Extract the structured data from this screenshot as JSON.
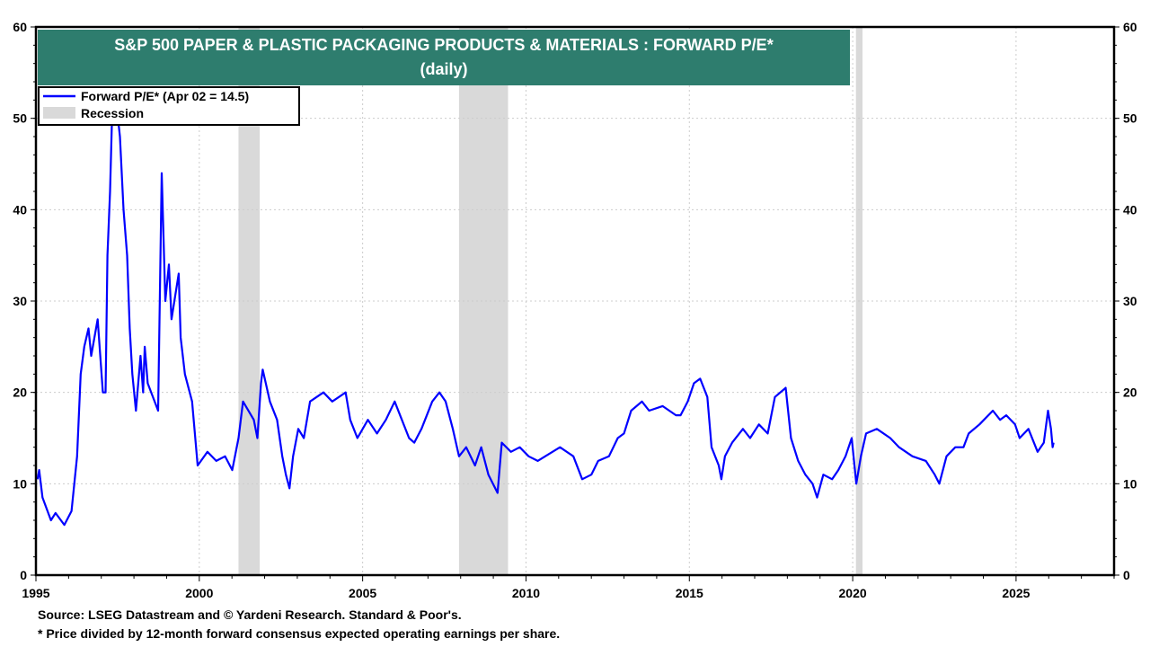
{
  "chart_data": {
    "type": "line",
    "title": "S&P 500 PAPER & PLASTIC PACKAGING PRODUCTS & MATERIALS : FORWARD P/E*",
    "subtitle": "(daily)",
    "xlim": [
      1995,
      2028
    ],
    "ylim": [
      0,
      60
    ],
    "x_ticks": [
      "1995",
      "2000",
      "2005",
      "2010",
      "2015",
      "2020",
      "2025"
    ],
    "y_ticks": [
      "0",
      "10",
      "20",
      "30",
      "40",
      "50",
      "60"
    ],
    "grid": true,
    "legend_position": "top-left",
    "title_bg": "#2E7D6E",
    "series": [
      {
        "name": "Forward P/E* (Apr 02 = 14.5)",
        "color": "#0000FF",
        "x": [
          1995.05,
          1995.1,
          1995.2,
          1995.46,
          1995.6,
          1995.87,
          1996.09,
          1996.26,
          1996.37,
          1996.48,
          1996.61,
          1996.69,
          1996.89,
          1997.05,
          1997.13,
          1997.19,
          1997.27,
          1997.32,
          1997.38,
          1997.51,
          1997.57,
          1997.68,
          1997.79,
          1997.87,
          1997.95,
          1998.06,
          1998.2,
          1998.28,
          1998.33,
          1998.42,
          1998.74,
          1998.85,
          1998.96,
          1999.07,
          1999.15,
          1999.37,
          1999.43,
          1999.56,
          1999.78,
          1999.95,
          2000.25,
          2000.52,
          2000.79,
          2001.01,
          2001.2,
          2001.34,
          2001.67,
          2001.78,
          2001.89,
          2001.94,
          2002.16,
          2002.38,
          2002.54,
          2002.65,
          2002.76,
          2002.87,
          2003.03,
          2003.2,
          2003.39,
          2003.8,
          2004.07,
          2004.48,
          2004.62,
          2004.84,
          2005.16,
          2005.44,
          2005.71,
          2005.98,
          2006.2,
          2006.42,
          2006.58,
          2006.8,
          2007.13,
          2007.35,
          2007.54,
          2007.76,
          2007.95,
          2008.17,
          2008.44,
          2008.63,
          2008.85,
          2009.13,
          2009.26,
          2009.54,
          2009.81,
          2010.08,
          2010.36,
          2011.04,
          2011.45,
          2011.72,
          2012.0,
          2012.21,
          2012.54,
          2012.81,
          2013.0,
          2013.22,
          2013.55,
          2013.77,
          2014.18,
          2014.59,
          2014.73,
          2014.95,
          2015.14,
          2015.33,
          2015.55,
          2015.68,
          2015.9,
          2015.98,
          2016.09,
          2016.31,
          2016.64,
          2016.86,
          2017.13,
          2017.4,
          2017.62,
          2017.95,
          2018.11,
          2018.33,
          2018.55,
          2018.77,
          2018.91,
          2019.1,
          2019.37,
          2019.56,
          2019.78,
          2019.97,
          2020.11,
          2020.25,
          2020.41,
          2020.74,
          2021.15,
          2021.42,
          2021.83,
          2022.24,
          2022.51,
          2022.65,
          2022.87,
          2023.14,
          2023.39,
          2023.55,
          2023.88,
          2024.29,
          2024.51,
          2024.7,
          2024.97,
          2025.11,
          2025.38,
          2025.66,
          2025.85,
          2025.98,
          2026.07,
          2026.12,
          2026.15
        ],
        "y": [
          10.5,
          11.5,
          8.5,
          6,
          6.8,
          5.5,
          7,
          13,
          22,
          25,
          27,
          24,
          28,
          20,
          20,
          35,
          42,
          49,
          53,
          50,
          48,
          40,
          35,
          27,
          22,
          18,
          24,
          20,
          25,
          21,
          18,
          44,
          30,
          34,
          28,
          33,
          26,
          22,
          19,
          12,
          13.5,
          12.5,
          13,
          11.5,
          15,
          19,
          17,
          15,
          21,
          22.5,
          19,
          17,
          13,
          11,
          9.5,
          13,
          16,
          15,
          19,
          20,
          19,
          20,
          17,
          15,
          17,
          15.5,
          17,
          19,
          17,
          15,
          14.5,
          16,
          19,
          20,
          19,
          16,
          13,
          14,
          12,
          14,
          11,
          9,
          14.5,
          13.5,
          14,
          13,
          12.5,
          14,
          13,
          10.5,
          11,
          12.5,
          13,
          15,
          15.5,
          18,
          19,
          18,
          18.5,
          17.5,
          17.5,
          19,
          21,
          21.5,
          19.5,
          14,
          12,
          10.5,
          13,
          14.5,
          16,
          15,
          16.5,
          15.5,
          19.5,
          20.5,
          15,
          12.5,
          11,
          10,
          8.5,
          11,
          10.5,
          11.5,
          13,
          15,
          10,
          13,
          15.5,
          16,
          15,
          14,
          13,
          12.5,
          11,
          10,
          13,
          14,
          14,
          15.5,
          16.5,
          18,
          17,
          17.5,
          16.5,
          15,
          16,
          13.5,
          14.5,
          18,
          16,
          14,
          14.5
        ]
      }
    ],
    "recessions": [
      [
        2001.2,
        2001.85
      ],
      [
        2007.95,
        2009.45
      ],
      [
        2020.1,
        2020.3
      ]
    ],
    "recession_label": "Recession",
    "recession_color": "#D9D9D9"
  },
  "footer": {
    "source": "Source: LSEG Datastream and © Yardeni Research. Standard & Poor's.",
    "note": "* Price divided by 12-month forward consensus expected operating earnings per share."
  }
}
